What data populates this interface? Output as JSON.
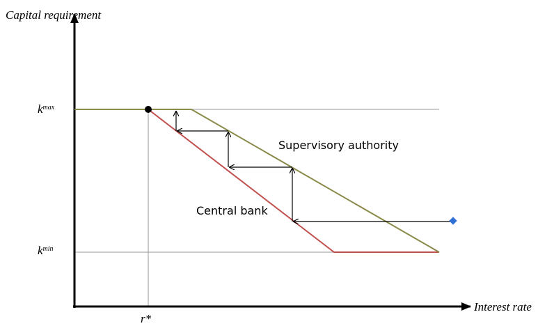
{
  "axes": {
    "y_label": "Capital requirement",
    "x_label": "Interest rate"
  },
  "levels": {
    "k_max": {
      "base": "k",
      "sup": "max"
    },
    "k_min": {
      "base": "k",
      "sup": "min"
    }
  },
  "r_star": "r*",
  "curves": {
    "supervisory": "Supervisory authority",
    "central": "Central bank"
  }
}
